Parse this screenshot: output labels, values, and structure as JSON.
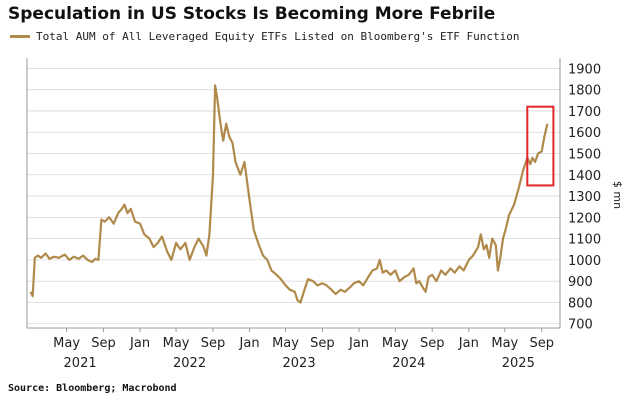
{
  "title": "Speculation in US Stocks Is Becoming More Febrile",
  "source": "Source: Bloomberg; Macrobond",
  "colors": {
    "series": "#b08a4a",
    "highlight_box": "#e3262a",
    "grid": "#d9d9d9",
    "axis": "#999999"
  },
  "chart_data": {
    "type": "line",
    "series": [
      {
        "name": "Total AUM of All Leveraged Equity ETFs Listed on Bloomberg's ETF Function",
        "points": [
          [
            "2021-01-01",
            850
          ],
          [
            "2021-01-08",
            830
          ],
          [
            "2021-01-15",
            1010
          ],
          [
            "2021-01-25",
            1020
          ],
          [
            "2021-02-05",
            1010
          ],
          [
            "2021-02-20",
            1030
          ],
          [
            "2021-03-05",
            1005
          ],
          [
            "2021-03-20",
            1015
          ],
          [
            "2021-04-05",
            1010
          ],
          [
            "2021-04-25",
            1025
          ],
          [
            "2021-05-10",
            1000
          ],
          [
            "2021-05-25",
            1015
          ],
          [
            "2021-06-10",
            1005
          ],
          [
            "2021-06-25",
            1020
          ],
          [
            "2021-07-10",
            1000
          ],
          [
            "2021-07-25",
            990
          ],
          [
            "2021-08-05",
            1005
          ],
          [
            "2021-08-15",
            1000
          ],
          [
            "2021-08-25",
            1190
          ],
          [
            "2021-09-05",
            1180
          ],
          [
            "2021-09-20",
            1200
          ],
          [
            "2021-10-05",
            1170
          ],
          [
            "2021-10-20",
            1220
          ],
          [
            "2021-11-01",
            1240
          ],
          [
            "2021-11-10",
            1260
          ],
          [
            "2021-11-20",
            1220
          ],
          [
            "2021-12-01",
            1240
          ],
          [
            "2021-12-15",
            1180
          ],
          [
            "2022-01-01",
            1170
          ],
          [
            "2022-01-15",
            1120
          ],
          [
            "2022-02-01",
            1100
          ],
          [
            "2022-02-15",
            1060
          ],
          [
            "2022-03-01",
            1080
          ],
          [
            "2022-03-15",
            1110
          ],
          [
            "2022-04-01",
            1040
          ],
          [
            "2022-04-15",
            1000
          ],
          [
            "2022-05-01",
            1080
          ],
          [
            "2022-05-15",
            1050
          ],
          [
            "2022-06-01",
            1080
          ],
          [
            "2022-06-15",
            1000
          ],
          [
            "2022-07-01",
            1060
          ],
          [
            "2022-07-15",
            1100
          ],
          [
            "2022-08-01",
            1060
          ],
          [
            "2022-08-10",
            1020
          ],
          [
            "2022-08-20",
            1120
          ],
          [
            "2022-09-01",
            1400
          ],
          [
            "2022-09-08",
            1820
          ],
          [
            "2022-09-15",
            1760
          ],
          [
            "2022-09-25",
            1650
          ],
          [
            "2022-10-05",
            1560
          ],
          [
            "2022-10-15",
            1640
          ],
          [
            "2022-10-25",
            1580
          ],
          [
            "2022-11-05",
            1550
          ],
          [
            "2022-11-15",
            1460
          ],
          [
            "2022-12-01",
            1400
          ],
          [
            "2022-12-15",
            1460
          ],
          [
            "2023-01-01",
            1280
          ],
          [
            "2023-01-15",
            1140
          ],
          [
            "2023-02-01",
            1070
          ],
          [
            "2023-02-15",
            1020
          ],
          [
            "2023-03-01",
            1000
          ],
          [
            "2023-03-15",
            950
          ],
          [
            "2023-04-01",
            930
          ],
          [
            "2023-04-15",
            910
          ],
          [
            "2023-05-01",
            880
          ],
          [
            "2023-05-15",
            860
          ],
          [
            "2023-06-01",
            850
          ],
          [
            "2023-06-10",
            810
          ],
          [
            "2023-06-20",
            800
          ],
          [
            "2023-07-01",
            850
          ],
          [
            "2023-07-15",
            910
          ],
          [
            "2023-08-01",
            900
          ],
          [
            "2023-08-15",
            880
          ],
          [
            "2023-09-01",
            890
          ],
          [
            "2023-09-15",
            880
          ],
          [
            "2023-10-01",
            860
          ],
          [
            "2023-10-15",
            840
          ],
          [
            "2023-11-01",
            860
          ],
          [
            "2023-11-15",
            850
          ],
          [
            "2023-12-01",
            870
          ],
          [
            "2023-12-15",
            890
          ],
          [
            "2024-01-01",
            900
          ],
          [
            "2024-01-15",
            880
          ],
          [
            "2024-02-01",
            920
          ],
          [
            "2024-02-15",
            950
          ],
          [
            "2024-03-01",
            960
          ],
          [
            "2024-03-10",
            1000
          ],
          [
            "2024-03-20",
            940
          ],
          [
            "2024-04-01",
            950
          ],
          [
            "2024-04-15",
            930
          ],
          [
            "2024-05-01",
            950
          ],
          [
            "2024-05-15",
            900
          ],
          [
            "2024-06-01",
            920
          ],
          [
            "2024-06-15",
            930
          ],
          [
            "2024-07-01",
            960
          ],
          [
            "2024-07-10",
            890
          ],
          [
            "2024-07-20",
            900
          ],
          [
            "2024-08-01",
            870
          ],
          [
            "2024-08-10",
            850
          ],
          [
            "2024-08-20",
            920
          ],
          [
            "2024-09-01",
            930
          ],
          [
            "2024-09-15",
            900
          ],
          [
            "2024-10-01",
            950
          ],
          [
            "2024-10-15",
            930
          ],
          [
            "2024-11-01",
            960
          ],
          [
            "2024-11-15",
            940
          ],
          [
            "2024-12-01",
            970
          ],
          [
            "2024-12-15",
            950
          ],
          [
            "2025-01-01",
            1000
          ],
          [
            "2025-01-15",
            1020
          ],
          [
            "2025-02-01",
            1060
          ],
          [
            "2025-02-10",
            1120
          ],
          [
            "2025-02-20",
            1050
          ],
          [
            "2025-03-01",
            1070
          ],
          [
            "2025-03-10",
            1010
          ],
          [
            "2025-03-20",
            1100
          ],
          [
            "2025-04-01",
            1070
          ],
          [
            "2025-04-08",
            950
          ],
          [
            "2025-04-15",
            1000
          ],
          [
            "2025-04-25",
            1100
          ],
          [
            "2025-05-05",
            1150
          ],
          [
            "2025-05-15",
            1210
          ],
          [
            "2025-06-01",
            1260
          ],
          [
            "2025-06-15",
            1330
          ],
          [
            "2025-07-01",
            1420
          ],
          [
            "2025-07-15",
            1480
          ],
          [
            "2025-07-25",
            1450
          ],
          [
            "2025-08-01",
            1480
          ],
          [
            "2025-08-10",
            1460
          ],
          [
            "2025-08-20",
            1500
          ],
          [
            "2025-09-01",
            1510
          ],
          [
            "2025-09-10",
            1580
          ],
          [
            "2025-09-20",
            1640
          ]
        ]
      }
    ],
    "y_axis": {
      "ticks": [
        700,
        800,
        900,
        1000,
        1100,
        1200,
        1300,
        1400,
        1500,
        1600,
        1700,
        1800,
        1900
      ],
      "ylim": [
        680,
        1930
      ],
      "unit": "$ mn",
      "side": "right"
    },
    "x_axis": {
      "xlim": [
        "2020-12-20",
        "2025-11-01"
      ],
      "month_ticks": [
        {
          "label": "May",
          "date": "2021-05-01"
        },
        {
          "label": "Sep",
          "date": "2021-09-01"
        },
        {
          "label": "Jan",
          "date": "2022-01-01"
        },
        {
          "label": "May",
          "date": "2022-05-01"
        },
        {
          "label": "Sep",
          "date": "2022-09-01"
        },
        {
          "label": "Jan",
          "date": "2023-01-01"
        },
        {
          "label": "May",
          "date": "2023-05-01"
        },
        {
          "label": "Sep",
          "date": "2023-09-01"
        },
        {
          "label": "Jan",
          "date": "2024-01-01"
        },
        {
          "label": "May",
          "date": "2024-05-01"
        },
        {
          "label": "Sep",
          "date": "2024-09-01"
        },
        {
          "label": "Jan",
          "date": "2025-01-01"
        },
        {
          "label": "May",
          "date": "2025-05-01"
        },
        {
          "label": "Sep",
          "date": "2025-09-01"
        }
      ],
      "year_labels": [
        {
          "label": "2021",
          "date": "2021-06-15"
        },
        {
          "label": "2022",
          "date": "2022-06-15"
        },
        {
          "label": "2023",
          "date": "2023-06-15"
        },
        {
          "label": "2024",
          "date": "2024-06-15"
        },
        {
          "label": "2025",
          "date": "2025-06-15"
        }
      ]
    },
    "highlight": {
      "x_range": [
        "2025-07-15",
        "2025-10-10"
      ],
      "y_range": [
        1350,
        1720
      ]
    },
    "grid": true,
    "legend_position": "top-left"
  }
}
